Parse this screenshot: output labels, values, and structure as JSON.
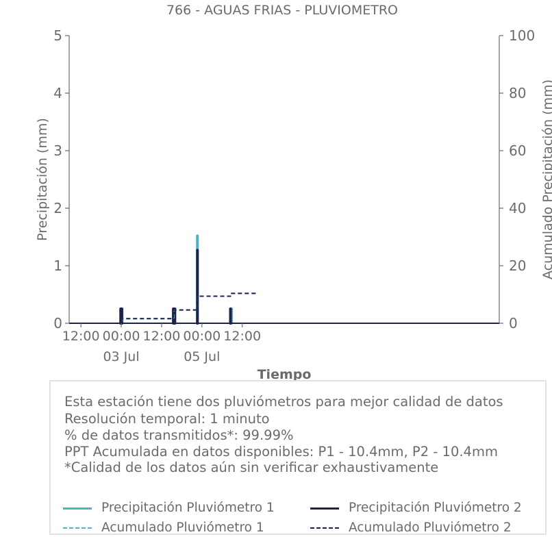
{
  "colors": {
    "p1": "#4bb3c6",
    "p2": "#1c2248",
    "axis": "#6b6b6b",
    "text": "#6b6b6b"
  },
  "chart_data": {
    "type": "bar",
    "title": "766 - AGUAS FRIAS - PLUVIOMETRO",
    "xlabel": "Tiempo",
    "ylabel": "Precipitación (mm)",
    "y2label": "Acumulado Precipitación (mm)",
    "ylim": [
      0,
      5
    ],
    "y2lim": [
      0,
      100
    ],
    "yticks": [
      "0",
      "1",
      "2",
      "3",
      "4",
      "5"
    ],
    "y2ticks": [
      "0",
      "20",
      "40",
      "60",
      "80",
      "100"
    ],
    "xlim": [
      "2024-07-01T08:30",
      "2024-07-06T16:30"
    ],
    "xticks": [
      {
        "t": "2024-07-01T12:00",
        "label": "12:00",
        "sub": ""
      },
      {
        "t": "2024-07-02T00:00",
        "label": "00:00",
        "sub": "03 Jul"
      },
      {
        "t": "2024-07-02T12:00",
        "label": "12:00",
        "sub": ""
      },
      {
        "t": "2024-07-03T00:00",
        "label": "00:00",
        "sub": "05 Jul"
      },
      {
        "t": "2024-07-03T12:00",
        "label": "12:00",
        "sub": ""
      }
    ],
    "grid": false,
    "series": [
      {
        "name": "Precipitación Pluviómetro 1",
        "kind": "bar",
        "color": "#4bb3c6",
        "points": [
          {
            "t": "2024-07-01T23:55",
            "v": 0.25
          },
          {
            "t": "2024-07-02T00:15",
            "v": 0.25
          },
          {
            "t": "2024-07-02T15:40",
            "v": 0.25
          },
          {
            "t": "2024-07-02T16:00",
            "v": 0.25
          },
          {
            "t": "2024-07-02T22:40",
            "v": 1.52
          },
          {
            "t": "2024-07-03T08:30",
            "v": 0.25
          },
          {
            "t": "2024-07-03T08:50",
            "v": 0.25
          }
        ]
      },
      {
        "name": "Precipitación Pluviómetro 2",
        "kind": "bar",
        "color": "#1c2248",
        "points": [
          {
            "t": "2024-07-01T23:50",
            "v": 0.25
          },
          {
            "t": "2024-07-02T00:10",
            "v": 0.25
          },
          {
            "t": "2024-07-02T15:30",
            "v": 0.25
          },
          {
            "t": "2024-07-02T15:55",
            "v": 0.25
          },
          {
            "t": "2024-07-02T22:40",
            "v": 1.27
          },
          {
            "t": "2024-07-03T08:30",
            "v": 0.25
          }
        ]
      },
      {
        "name": "Acumulado Pluviómetro 1",
        "kind": "step",
        "color": "#4bb3c6",
        "points": [
          {
            "t": "2024-07-01T08:30",
            "v": 0
          },
          {
            "t": "2024-07-02T00:15",
            "v": 1.6
          },
          {
            "t": "2024-07-02T15:40",
            "v": 4.6
          },
          {
            "t": "2024-07-02T22:40",
            "v": 9.4
          },
          {
            "t": "2024-07-03T08:30",
            "v": 10.4
          },
          {
            "t": "2024-07-03T16:30",
            "v": 10.4
          }
        ]
      },
      {
        "name": "Acumulado Pluviómetro 2",
        "kind": "step",
        "color": "#1c2248",
        "points": [
          {
            "t": "2024-07-01T08:30",
            "v": 0
          },
          {
            "t": "2024-07-02T00:10",
            "v": 1.6
          },
          {
            "t": "2024-07-02T15:30",
            "v": 4.6
          },
          {
            "t": "2024-07-02T22:40",
            "v": 9.4
          },
          {
            "t": "2024-07-03T08:30",
            "v": 10.4
          },
          {
            "t": "2024-07-03T16:30",
            "v": 10.4
          }
        ]
      }
    ]
  },
  "info": {
    "line1": "Esta estación tiene dos pluviómetros para mejor calidad de datos",
    "line2": "Resolución temporal: 1 minuto",
    "line3": "% de datos transmitidos*: 99.99%",
    "line4": "PPT Acumulada en datos disponibles: P1 - 10.4mm, P2 - 10.4mm",
    "line5": "*Calidad de los datos aún sin verificar exhaustivamente"
  },
  "legend": {
    "p1_precip": "Precipitación Pluviómetro 1",
    "p2_precip": "Precipitación Pluviómetro 2",
    "p1_acum": "Acumulado Pluviómetro 1",
    "p2_acum": "Acumulado Pluviómetro 2"
  }
}
